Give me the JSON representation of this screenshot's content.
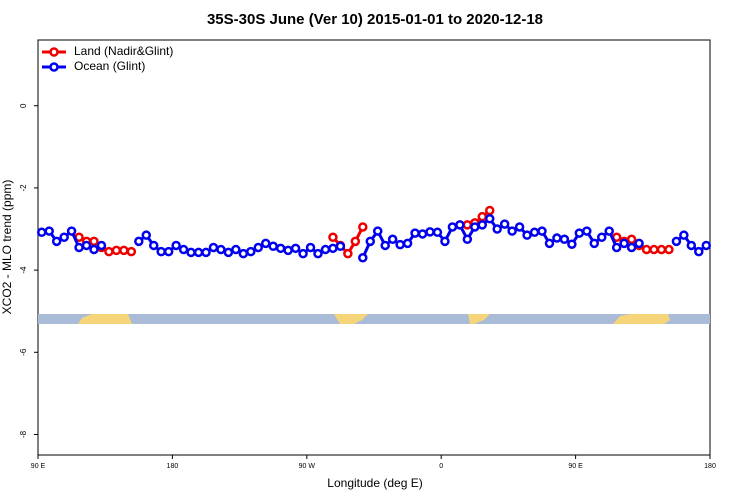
{
  "chart_data": {
    "type": "line",
    "title": "35S-30S June (Ver 10)   2015-01-01 to 2020-12-18",
    "x_label": "Longitude (deg E)",
    "y_label": "XCO2 - MLO trend (ppm)",
    "xlim": [
      90,
      540
    ],
    "xticks": [
      {
        "value": 90,
        "label": "90 E"
      },
      180,
      {
        "value": 270,
        "label": "90 W"
      },
      {
        "value": 360,
        "label": "0"
      },
      {
        "value": 450,
        "label": "90 E"
      },
      {
        "value": 540,
        "label": "180"
      }
    ],
    "ylim": [
      -8.5,
      1.6
    ],
    "yticks": [
      0,
      -2,
      -4,
      -6,
      -8
    ],
    "legend": "top-left",
    "x": [
      92.5,
      97.5,
      102.5,
      107.5,
      112.5,
      117.5,
      122.5,
      127.5,
      132.5,
      137.5,
      142.5,
      147.5,
      152.5,
      157.5,
      162.5,
      167.5,
      172.5,
      177.5,
      182.5,
      187.5,
      192.5,
      197.5,
      202.5,
      207.5,
      212.5,
      217.5,
      222.5,
      227.5,
      232.5,
      237.5,
      242.5,
      247.5,
      252.5,
      257.5,
      262.5,
      267.5,
      272.5,
      277.5,
      282.5,
      287.5,
      292.5,
      297.5,
      302.5,
      307.5,
      312.5,
      317.5,
      322.5,
      327.5,
      332.5,
      337.5,
      342.5,
      347.5,
      352.5,
      357.5,
      362.5,
      367.5,
      372.5,
      377.5,
      382.5,
      387.5,
      392.5,
      397.5,
      402.5,
      407.5,
      412.5,
      417.5,
      422.5,
      427.5,
      432.5,
      437.5,
      442.5,
      447.5,
      452.5,
      457.5,
      462.5,
      467.5,
      472.5,
      477.5,
      482.5,
      487.5,
      492.5,
      497.5,
      502.5,
      507.5,
      512.5,
      517.5,
      522.5,
      527.5,
      532.5,
      537.5
    ],
    "series": [
      {
        "name": "Land (Nadir&Glint)",
        "color": "#ee0000",
        "values": [
          null,
          null,
          null,
          null,
          null,
          -3.2,
          -3.3,
          -3.3,
          -3.45,
          -3.55,
          -3.52,
          -3.52,
          -3.55,
          null,
          null,
          null,
          null,
          null,
          null,
          null,
          null,
          null,
          null,
          null,
          null,
          null,
          null,
          null,
          null,
          null,
          null,
          null,
          null,
          null,
          null,
          null,
          null,
          null,
          null,
          -3.2,
          -3.4,
          -3.6,
          -3.3,
          -2.95,
          null,
          null,
          null,
          null,
          null,
          null,
          null,
          null,
          null,
          null,
          null,
          null,
          null,
          -2.9,
          -2.85,
          -2.7,
          -2.55,
          null,
          null,
          null,
          null,
          null,
          null,
          null,
          null,
          null,
          null,
          null,
          null,
          null,
          null,
          null,
          null,
          -3.2,
          -3.3,
          -3.25,
          -3.4,
          -3.5,
          -3.5,
          -3.5,
          -3.5,
          null,
          null,
          null,
          null,
          null
        ]
      },
      {
        "name": "Ocean (Glint)",
        "color": "#0000ee",
        "values": [
          -3.08,
          -3.05,
          -3.3,
          -3.2,
          -3.05,
          -3.45,
          -3.4,
          -3.5,
          -3.4,
          null,
          null,
          null,
          null,
          -3.3,
          -3.15,
          -3.4,
          -3.55,
          -3.55,
          -3.4,
          -3.5,
          -3.57,
          -3.57,
          -3.57,
          -3.45,
          -3.5,
          -3.57,
          -3.5,
          -3.6,
          -3.55,
          -3.45,
          -3.35,
          -3.42,
          -3.47,
          -3.52,
          -3.47,
          -3.6,
          -3.45,
          -3.6,
          -3.5,
          -3.47,
          -3.42,
          null,
          null,
          -3.7,
          -3.3,
          -3.05,
          -3.4,
          -3.25,
          -3.38,
          -3.35,
          -3.1,
          -3.12,
          -3.07,
          -3.08,
          -3.3,
          -2.95,
          -2.9,
          -3.25,
          -2.95,
          -2.9,
          -2.75,
          -3.0,
          -2.88,
          -3.05,
          -2.95,
          -3.15,
          -3.08,
          -3.05,
          -3.35,
          -3.22,
          -3.25,
          -3.37,
          -3.1,
          -3.05,
          -3.35,
          -3.2,
          -3.05,
          -3.45,
          -3.35,
          -3.45,
          -3.35,
          null,
          null,
          null,
          null,
          -3.3,
          -3.15,
          -3.4,
          -3.55,
          -3.4
        ]
      }
    ]
  }
}
